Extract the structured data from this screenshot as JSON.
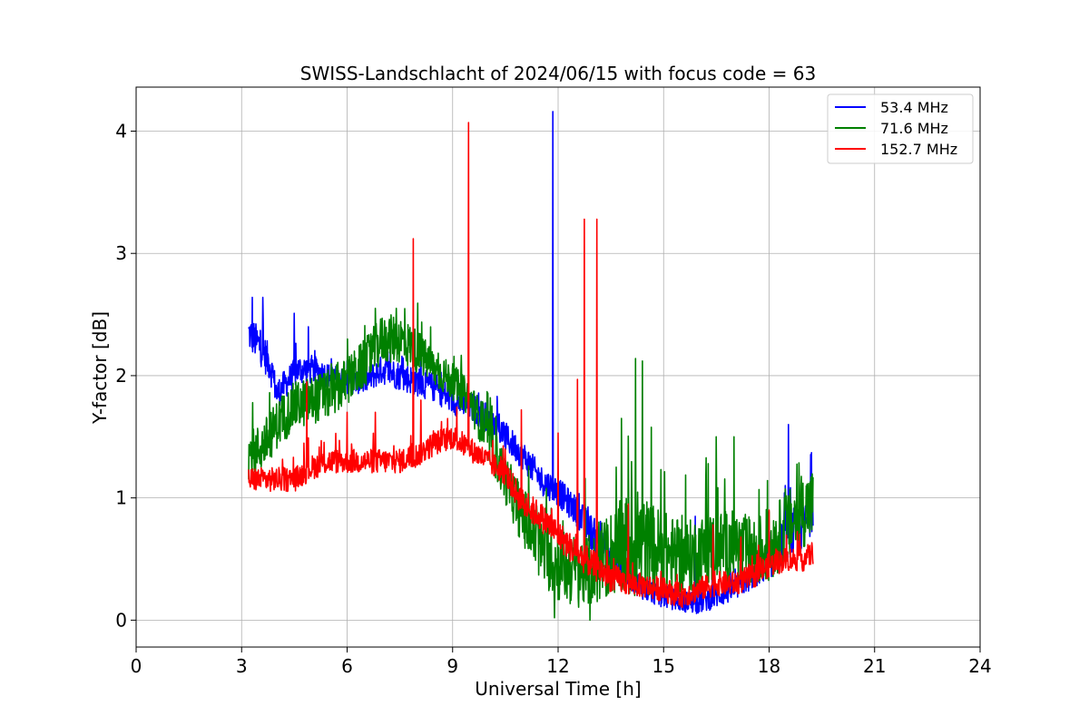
{
  "chart_data": {
    "type": "line",
    "title": "SWISS-Landschlacht of 2024/06/15 with focus code = 63",
    "xlabel": "Universal Time [h]",
    "ylabel": "Y-factor [dB]",
    "xlim": [
      0,
      24
    ],
    "ylim": [
      -0.22,
      4.36
    ],
    "xticks": [
      0,
      3,
      6,
      9,
      12,
      15,
      18,
      21,
      24
    ],
    "yticks": [
      0,
      1,
      2,
      3,
      4
    ],
    "xtick_labels": [
      "0",
      "3",
      "6",
      "9",
      "12",
      "15",
      "18",
      "21",
      "24"
    ],
    "ytick_labels": [
      "0",
      "1",
      "2",
      "3",
      "4"
    ],
    "grid": true,
    "legend_position": "top-right",
    "series": [
      {
        "name": "53.4 MHz",
        "color": "#0000ff",
        "x": [
          3.2,
          3.5,
          3.8,
          4.0,
          4.3,
          4.6,
          5.0,
          5.5,
          6.0,
          6.5,
          7.0,
          7.5,
          8.0,
          8.5,
          9.0,
          9.5,
          10.0,
          10.5,
          11.0,
          11.5,
          12.0,
          12.5,
          13.0,
          13.5,
          14.0,
          14.5,
          15.0,
          15.5,
          16.0,
          16.5,
          17.0,
          17.5,
          18.0,
          18.5,
          19.0,
          19.25
        ],
        "y": [
          2.35,
          2.25,
          2.1,
          1.85,
          1.95,
          2.05,
          2.05,
          2.0,
          1.95,
          1.95,
          2.05,
          2.0,
          1.95,
          1.9,
          1.8,
          1.75,
          1.65,
          1.5,
          1.35,
          1.15,
          1.05,
          0.9,
          0.7,
          0.5,
          0.35,
          0.25,
          0.2,
          0.15,
          0.15,
          0.2,
          0.25,
          0.35,
          0.45,
          0.7,
          0.75,
          0.95
        ],
        "band": [
          0.15,
          0.15,
          0.15,
          0.12,
          0.12,
          0.12,
          0.12,
          0.1,
          0.1,
          0.1,
          0.12,
          0.12,
          0.12,
          0.12,
          0.12,
          0.12,
          0.12,
          0.12,
          0.12,
          0.12,
          0.12,
          0.12,
          0.15,
          0.12,
          0.1,
          0.1,
          0.1,
          0.08,
          0.1,
          0.1,
          0.1,
          0.1,
          0.12,
          0.2,
          0.2,
          0.2
        ],
        "spikes": [
          [
            3.3,
            2.64
          ],
          [
            3.6,
            2.64
          ],
          [
            4.5,
            2.51
          ],
          [
            4.9,
            2.4
          ],
          [
            8.1,
            2.2
          ],
          [
            11.85,
            4.16
          ],
          [
            15.9,
            0.85
          ],
          [
            18.55,
            1.6
          ],
          [
            19.2,
            1.37
          ]
        ]
      },
      {
        "name": "71.6 MHz",
        "color": "#008000",
        "x": [
          3.2,
          3.5,
          3.8,
          4.0,
          4.5,
          5.0,
          5.5,
          6.0,
          6.5,
          7.0,
          7.5,
          8.0,
          8.5,
          9.0,
          9.5,
          10.0,
          10.5,
          11.0,
          11.5,
          12.0,
          12.5,
          13.0,
          13.5,
          14.0,
          14.5,
          15.0,
          15.5,
          16.0,
          16.5,
          17.0,
          17.5,
          18.0,
          18.5,
          19.0,
          19.25
        ],
        "y": [
          1.35,
          1.4,
          1.5,
          1.6,
          1.75,
          1.8,
          1.85,
          1.95,
          2.1,
          2.3,
          2.3,
          2.2,
          2.05,
          1.95,
          1.8,
          1.5,
          1.15,
          0.85,
          0.6,
          0.45,
          0.4,
          0.4,
          0.55,
          0.6,
          0.6,
          0.55,
          0.5,
          0.55,
          0.6,
          0.6,
          0.55,
          0.6,
          0.75,
          0.9,
          0.95
        ],
        "band": [
          0.2,
          0.2,
          0.2,
          0.2,
          0.2,
          0.2,
          0.2,
          0.2,
          0.2,
          0.2,
          0.2,
          0.18,
          0.15,
          0.15,
          0.15,
          0.2,
          0.2,
          0.25,
          0.3,
          0.3,
          0.3,
          0.3,
          0.35,
          0.45,
          0.4,
          0.35,
          0.3,
          0.3,
          0.3,
          0.3,
          0.3,
          0.3,
          0.3,
          0.3,
          0.3
        ],
        "spikes": [
          [
            6.8,
            2.55
          ],
          [
            7.4,
            2.55
          ],
          [
            11.9,
            0.02
          ],
          [
            12.9,
            0.0
          ],
          [
            13.8,
            1.65
          ],
          [
            14.2,
            2.14
          ],
          [
            14.4,
            2.12
          ],
          [
            16.5,
            1.5
          ],
          [
            17.0,
            1.5
          ]
        ]
      },
      {
        "name": "152.7 MHz",
        "color": "#ff0000",
        "x": [
          3.2,
          3.5,
          4.0,
          4.5,
          5.0,
          5.5,
          6.0,
          6.5,
          7.0,
          7.5,
          8.0,
          8.5,
          9.0,
          9.5,
          10.0,
          10.5,
          11.0,
          11.5,
          12.0,
          12.5,
          13.0,
          13.5,
          14.0,
          14.5,
          15.0,
          15.5,
          16.0,
          16.5,
          17.0,
          17.5,
          18.0,
          18.5,
          19.0,
          19.25
        ],
        "y": [
          1.15,
          1.15,
          1.15,
          1.15,
          1.25,
          1.3,
          1.3,
          1.3,
          1.3,
          1.3,
          1.35,
          1.45,
          1.5,
          1.4,
          1.3,
          1.2,
          0.95,
          0.85,
          0.7,
          0.55,
          0.45,
          0.35,
          0.3,
          0.28,
          0.25,
          0.2,
          0.25,
          0.3,
          0.3,
          0.35,
          0.45,
          0.5,
          0.5,
          0.55
        ],
        "band": [
          0.1,
          0.1,
          0.1,
          0.1,
          0.1,
          0.1,
          0.1,
          0.1,
          0.1,
          0.1,
          0.1,
          0.1,
          0.1,
          0.1,
          0.1,
          0.1,
          0.12,
          0.12,
          0.12,
          0.12,
          0.12,
          0.12,
          0.1,
          0.1,
          0.1,
          0.1,
          0.1,
          0.1,
          0.1,
          0.1,
          0.1,
          0.1,
          0.1,
          0.1
        ],
        "spikes": [
          [
            4.85,
            1.95
          ],
          [
            6.0,
            1.7
          ],
          [
            6.8,
            1.7
          ],
          [
            7.88,
            3.12
          ],
          [
            8.1,
            1.8
          ],
          [
            9.45,
            4.07
          ],
          [
            10.95,
            1.72
          ],
          [
            12.0,
            1.53
          ],
          [
            12.55,
            1.97
          ],
          [
            12.75,
            3.28
          ],
          [
            13.1,
            3.28
          ],
          [
            14.0,
            0.95
          ],
          [
            16.4,
            0.78
          ],
          [
            17.2,
            0.68
          ],
          [
            18.0,
            0.9
          ]
        ]
      }
    ]
  }
}
